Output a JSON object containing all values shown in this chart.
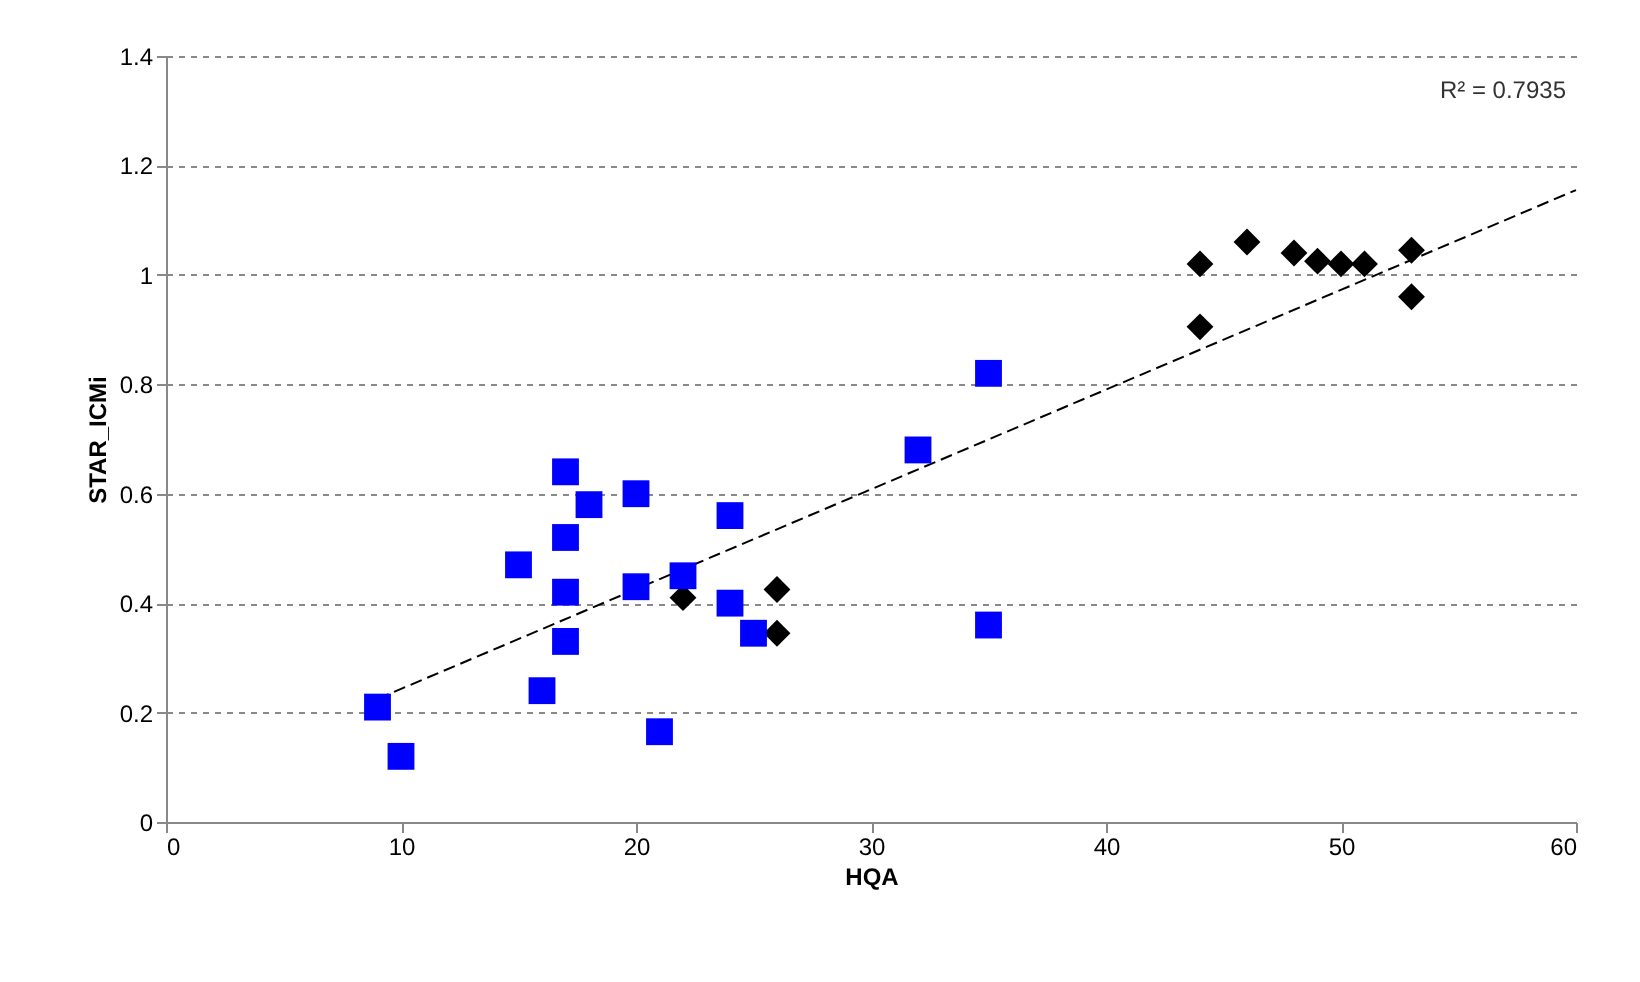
{
  "chart_data": {
    "type": "scatter",
    "xlabel": "HQA",
    "ylabel": "STAR_ICMi",
    "xlim": [
      0,
      60
    ],
    "ylim": [
      0,
      1.4
    ],
    "xticks": [
      0,
      10,
      20,
      30,
      40,
      50,
      60
    ],
    "yticks": [
      0,
      0.2,
      0.4,
      0.6,
      0.8,
      1,
      1.2,
      1.4
    ],
    "grid": "y",
    "legend": false,
    "annotations": [
      "R² = 0.7935"
    ],
    "series": [
      {
        "type": "line",
        "color": "#000000",
        "line_style": "dashed",
        "x": [
          9,
          60
        ],
        "values": [
          0.225,
          1.155
        ]
      },
      {
        "color": "#000000",
        "marker": "diamond",
        "x": [
          22,
          26,
          26,
          44,
          44,
          46,
          48,
          49,
          50,
          51,
          53,
          53
        ],
        "values": [
          0.41,
          0.425,
          0.345,
          1.02,
          0.905,
          1.06,
          1.04,
          1.025,
          1.02,
          1.02,
          1.045,
          0.96
        ]
      },
      {
        "color": "#0000ff",
        "marker": "square",
        "x": [
          9,
          10,
          15,
          16,
          17,
          17,
          17,
          17,
          18,
          20,
          20,
          21,
          22,
          24,
          24,
          25,
          32,
          35,
          35
        ],
        "values": [
          0.21,
          0.12,
          0.47,
          0.24,
          0.64,
          0.52,
          0.42,
          0.33,
          0.58,
          0.6,
          0.43,
          0.165,
          0.45,
          0.56,
          0.4,
          0.345,
          0.68,
          0.82,
          0.36
        ]
      }
    ]
  }
}
